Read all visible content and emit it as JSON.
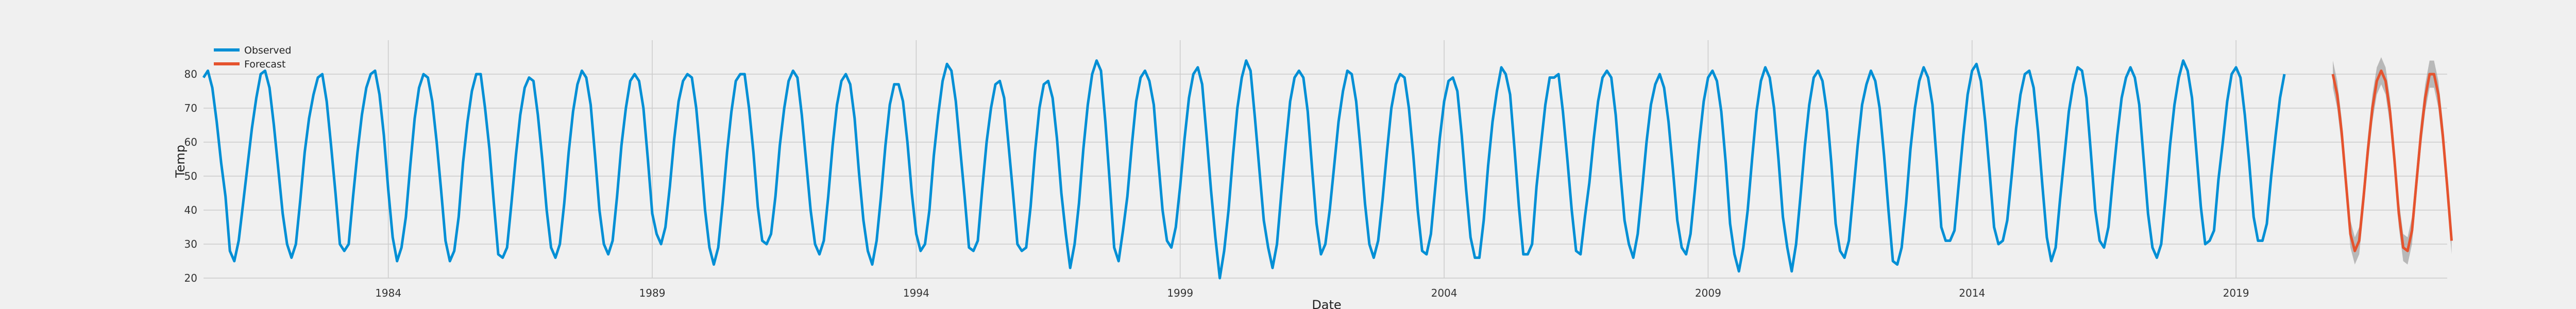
{
  "chart_data": {
    "type": "line",
    "title": "",
    "xlabel": "Date",
    "ylabel": "Temp",
    "x_start_year": 1980.5,
    "x_end_year": 2023.0,
    "xlim": [
      1980.5,
      2023.0
    ],
    "ylim": [
      20,
      90
    ],
    "x_ticks": [
      1984,
      1989,
      1994,
      1999,
      2004,
      2009,
      2014,
      2019
    ],
    "x_tick_labels": [
      "1984",
      "1989",
      "1994",
      "1999",
      "2004",
      "2009",
      "2014",
      "2019"
    ],
    "y_ticks": [
      20,
      30,
      40,
      50,
      60,
      70,
      80
    ],
    "y_tick_labels": [
      "20",
      "30",
      "40",
      "50",
      "60",
      "70",
      "80"
    ],
    "grid": true,
    "legend_position": "top-left",
    "colors": {
      "background": "#f0f0f0",
      "grid": "#cbcbcb",
      "observed": "#008fd5",
      "forecast": "#e5532e",
      "band": "#8a8a8a"
    },
    "series": [
      {
        "name": "Observed",
        "x_start": 1980.5,
        "step_years": 0.0833333,
        "values": [
          79,
          81,
          76,
          66,
          54,
          44,
          28,
          25,
          31,
          42,
          53,
          64,
          73,
          80,
          81,
          76,
          65,
          52,
          39,
          30,
          26,
          30,
          43,
          57,
          67,
          74,
          79,
          80,
          72,
          59,
          45,
          30,
          28,
          30,
          44,
          57,
          68,
          76,
          80,
          81,
          74,
          62,
          46,
          32,
          25,
          29,
          38,
          53,
          67,
          76,
          80,
          79,
          72,
          60,
          46,
          31,
          25,
          28,
          38,
          54,
          66,
          75,
          80,
          80,
          70,
          58,
          42,
          27,
          26,
          29,
          42,
          56,
          68,
          76,
          79,
          78,
          68,
          55,
          40,
          29,
          26,
          30,
          42,
          57,
          69,
          77,
          81,
          79,
          71,
          56,
          40,
          30,
          27,
          31,
          44,
          59,
          70,
          78,
          80,
          78,
          70,
          55,
          39,
          33,
          30,
          35,
          47,
          61,
          72,
          78,
          80,
          79,
          70,
          56,
          40,
          29,
          24,
          29,
          42,
          57,
          69,
          78,
          80,
          80,
          70,
          57,
          41,
          31,
          30,
          33,
          44,
          59,
          70,
          78,
          81,
          79,
          68,
          54,
          40,
          30,
          27,
          31,
          44,
          59,
          71,
          78,
          80,
          77,
          67,
          51,
          37,
          28,
          24,
          31,
          44,
          59,
          71,
          77,
          77,
          72,
          60,
          45,
          33,
          28,
          30,
          40,
          56,
          68,
          78,
          83,
          81,
          72,
          58,
          44,
          29,
          28,
          31,
          46,
          60,
          70,
          77,
          78,
          73,
          59,
          45,
          30,
          28,
          29,
          41,
          57,
          70,
          77,
          78,
          73,
          61,
          45,
          33,
          23,
          30,
          42,
          58,
          71,
          80,
          84,
          81,
          66,
          48,
          29,
          25,
          34,
          44,
          59,
          72,
          79,
          81,
          78,
          71,
          55,
          40,
          31,
          29,
          35,
          47,
          61,
          73,
          80,
          82,
          77,
          62,
          46,
          32,
          20,
          28,
          40,
          56,
          70,
          79,
          84,
          81,
          67,
          52,
          37,
          29,
          23,
          30,
          45,
          59,
          72,
          79,
          81,
          79,
          69,
          52,
          36,
          27,
          30,
          40,
          53,
          66,
          75,
          81,
          80,
          72,
          58,
          42,
          30,
          26,
          31,
          43,
          57,
          70,
          77,
          80,
          79,
          70,
          56,
          40,
          28,
          27,
          33,
          47,
          61,
          72,
          78,
          79,
          75,
          62,
          46,
          32,
          26,
          26,
          37,
          53,
          66,
          75,
          82,
          80,
          74,
          58,
          41,
          27,
          27,
          30,
          47,
          59,
          71,
          79,
          79,
          80,
          69,
          55,
          40,
          28,
          27,
          38,
          48,
          61,
          72,
          79,
          81,
          79,
          68,
          52,
          37,
          30,
          26,
          33,
          46,
          60,
          71,
          77,
          80,
          76,
          66,
          52,
          37,
          29,
          27,
          33,
          46,
          60,
          72,
          79,
          81,
          78,
          69,
          54,
          36,
          27,
          22,
          29,
          40,
          55,
          69,
          78,
          82,
          79,
          70,
          55,
          38,
          29,
          22,
          30,
          44,
          59,
          71,
          79,
          81,
          78,
          69,
          54,
          36,
          28,
          26,
          31,
          45,
          59,
          71,
          77,
          81,
          78,
          70,
          56,
          40,
          25,
          24,
          29,
          42,
          58,
          70,
          78,
          82,
          79,
          71,
          54,
          35,
          31,
          31,
          34,
          48,
          62,
          74,
          81,
          83,
          78,
          66,
          51,
          35,
          30,
          31,
          37,
          50,
          64,
          74,
          80,
          81,
          76,
          63,
          47,
          32,
          25,
          29,
          43,
          56,
          69,
          77,
          82,
          81,
          73,
          57,
          40,
          31,
          29,
          35,
          49,
          62,
          73,
          79,
          82,
          79,
          71,
          55,
          39,
          29,
          26,
          30,
          44,
          59,
          71,
          79,
          84,
          81,
          73,
          57,
          41,
          30,
          31,
          34,
          49,
          60,
          72,
          80,
          82,
          79,
          68,
          54,
          38,
          31,
          31,
          36,
          50,
          62,
          73,
          80
        ]
      },
      {
        "name": "Forecast",
        "x_start": 2020.8333,
        "step_years": 0.0833333,
        "values": [
          80,
          74,
          63,
          48,
          33,
          28,
          31,
          44,
          58,
          70,
          78,
          81,
          78,
          69,
          55,
          39,
          29,
          28,
          34,
          48,
          62,
          73,
          80,
          80,
          74,
          62,
          47,
          31
        ],
        "band_half_width": 4
      }
    ]
  }
}
